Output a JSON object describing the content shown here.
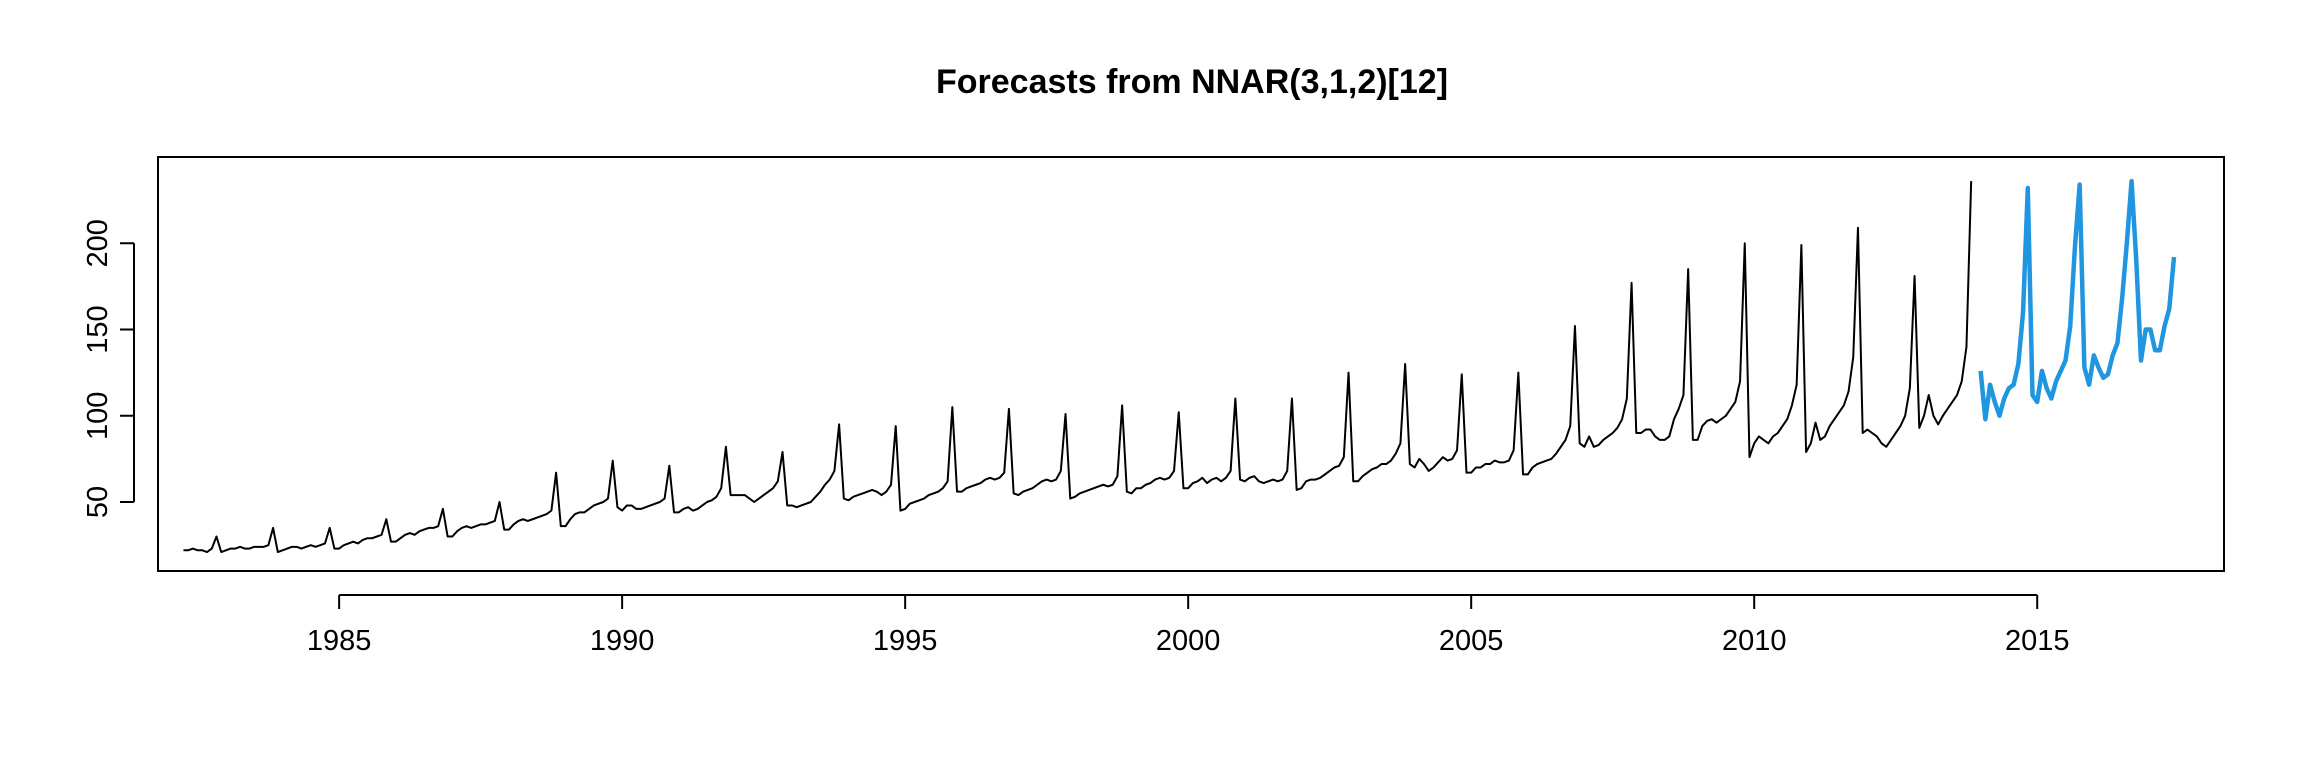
{
  "chart_data": {
    "type": "line",
    "title": "Forecasts from NNAR(3,1,2)[12]",
    "xlabel": "",
    "ylabel": "",
    "xlim": [
      1981.8,
      2018.3
    ],
    "ylim": [
      10,
      250
    ],
    "x_ticks": [
      1985,
      1990,
      1995,
      2000,
      2005,
      2010,
      2015
    ],
    "y_ticks": [
      50,
      100,
      150,
      200
    ],
    "grid": false,
    "frequency": 12,
    "colors": {
      "observed": "#000000",
      "forecast": "#2196E0"
    },
    "series": [
      {
        "role": "observed",
        "start": [
          1982,
          4
        ],
        "values": [
          22,
          22,
          23,
          22,
          22,
          21,
          23,
          30,
          21,
          22,
          23,
          23,
          24,
          23,
          23,
          24,
          24,
          24,
          25,
          35,
          21,
          22,
          23,
          24,
          24,
          23,
          24,
          25,
          24,
          25,
          26,
          35,
          23,
          23,
          25,
          26,
          27,
          26,
          28,
          29,
          29,
          30,
          31,
          40,
          27,
          27,
          29,
          31,
          32,
          31,
          33,
          34,
          35,
          35,
          36,
          46,
          30,
          30,
          33,
          35,
          36,
          35,
          36,
          37,
          37,
          38,
          39,
          50,
          34,
          34,
          37,
          39,
          40,
          39,
          40,
          41,
          42,
          43,
          45,
          67,
          36,
          36,
          40,
          43,
          44,
          44,
          46,
          48,
          49,
          50,
          52,
          74,
          47,
          45,
          48,
          48,
          46,
          46,
          47,
          48,
          49,
          50,
          52,
          71,
          44,
          44,
          46,
          47,
          45,
          46,
          48,
          50,
          51,
          53,
          58,
          82,
          54,
          54,
          54,
          54,
          52,
          50,
          52,
          54,
          56,
          58,
          62,
          79,
          48,
          48,
          47,
          48,
          49,
          50,
          53,
          56,
          60,
          63,
          68,
          95,
          52,
          51,
          53,
          54,
          55,
          56,
          57,
          56,
          54,
          56,
          60,
          94,
          45,
          46,
          49,
          50,
          51,
          52,
          54,
          55,
          56,
          58,
          62,
          105,
          56,
          56,
          58,
          59,
          60,
          61,
          63,
          64,
          63,
          64,
          67,
          104,
          55,
          54,
          56,
          57,
          58,
          60,
          62,
          63,
          62,
          63,
          68,
          101,
          52,
          53,
          55,
          56,
          57,
          58,
          59,
          60,
          59,
          60,
          65,
          106,
          56,
          55,
          58,
          58,
          60,
          61,
          63,
          64,
          63,
          64,
          68,
          102,
          58,
          58,
          61,
          62,
          64,
          61,
          63,
          64,
          62,
          64,
          68,
          110,
          63,
          62,
          64,
          65,
          62,
          61,
          62,
          63,
          62,
          63,
          68,
          110,
          57,
          58,
          62,
          63,
          63,
          64,
          66,
          68,
          70,
          71,
          76,
          125,
          62,
          62,
          65,
          67,
          69,
          70,
          72,
          72,
          74,
          78,
          84,
          130,
          72,
          70,
          75,
          72,
          68,
          70,
          73,
          76,
          74,
          75,
          80,
          124,
          67,
          67,
          70,
          70,
          72,
          72,
          74,
          73,
          73,
          74,
          80,
          125,
          66,
          66,
          70,
          72,
          73,
          74,
          75,
          78,
          82,
          86,
          94,
          152,
          84,
          82,
          88,
          82,
          83,
          86,
          88,
          90,
          93,
          98,
          110,
          177,
          90,
          90,
          92,
          92,
          88,
          86,
          86,
          88,
          98,
          104,
          112,
          185,
          86,
          86,
          94,
          97,
          98,
          96,
          98,
          100,
          104,
          108,
          120,
          200,
          76,
          84,
          88,
          86,
          84,
          88,
          90,
          94,
          98,
          106,
          118,
          199,
          79,
          84,
          96,
          86,
          88,
          94,
          98,
          102,
          106,
          114,
          134,
          209,
          90,
          92,
          90,
          88,
          84,
          82,
          86,
          90,
          94,
          100,
          116,
          181,
          93,
          100,
          112,
          100,
          95,
          100,
          104,
          108,
          112,
          120,
          140,
          236
        ]
      },
      {
        "role": "forecast",
        "start": [
          2014,
          1
        ],
        "values": [
          126,
          98,
          118,
          108,
          100,
          110,
          116,
          118,
          130,
          160,
          232,
          112,
          108,
          126,
          116,
          110,
          120,
          126,
          132,
          152,
          198,
          234,
          128,
          118,
          135,
          128,
          122,
          124,
          135,
          142,
          168,
          200,
          236,
          190,
          132,
          150,
          150,
          138,
          138,
          152,
          162,
          192
        ]
      }
    ]
  }
}
